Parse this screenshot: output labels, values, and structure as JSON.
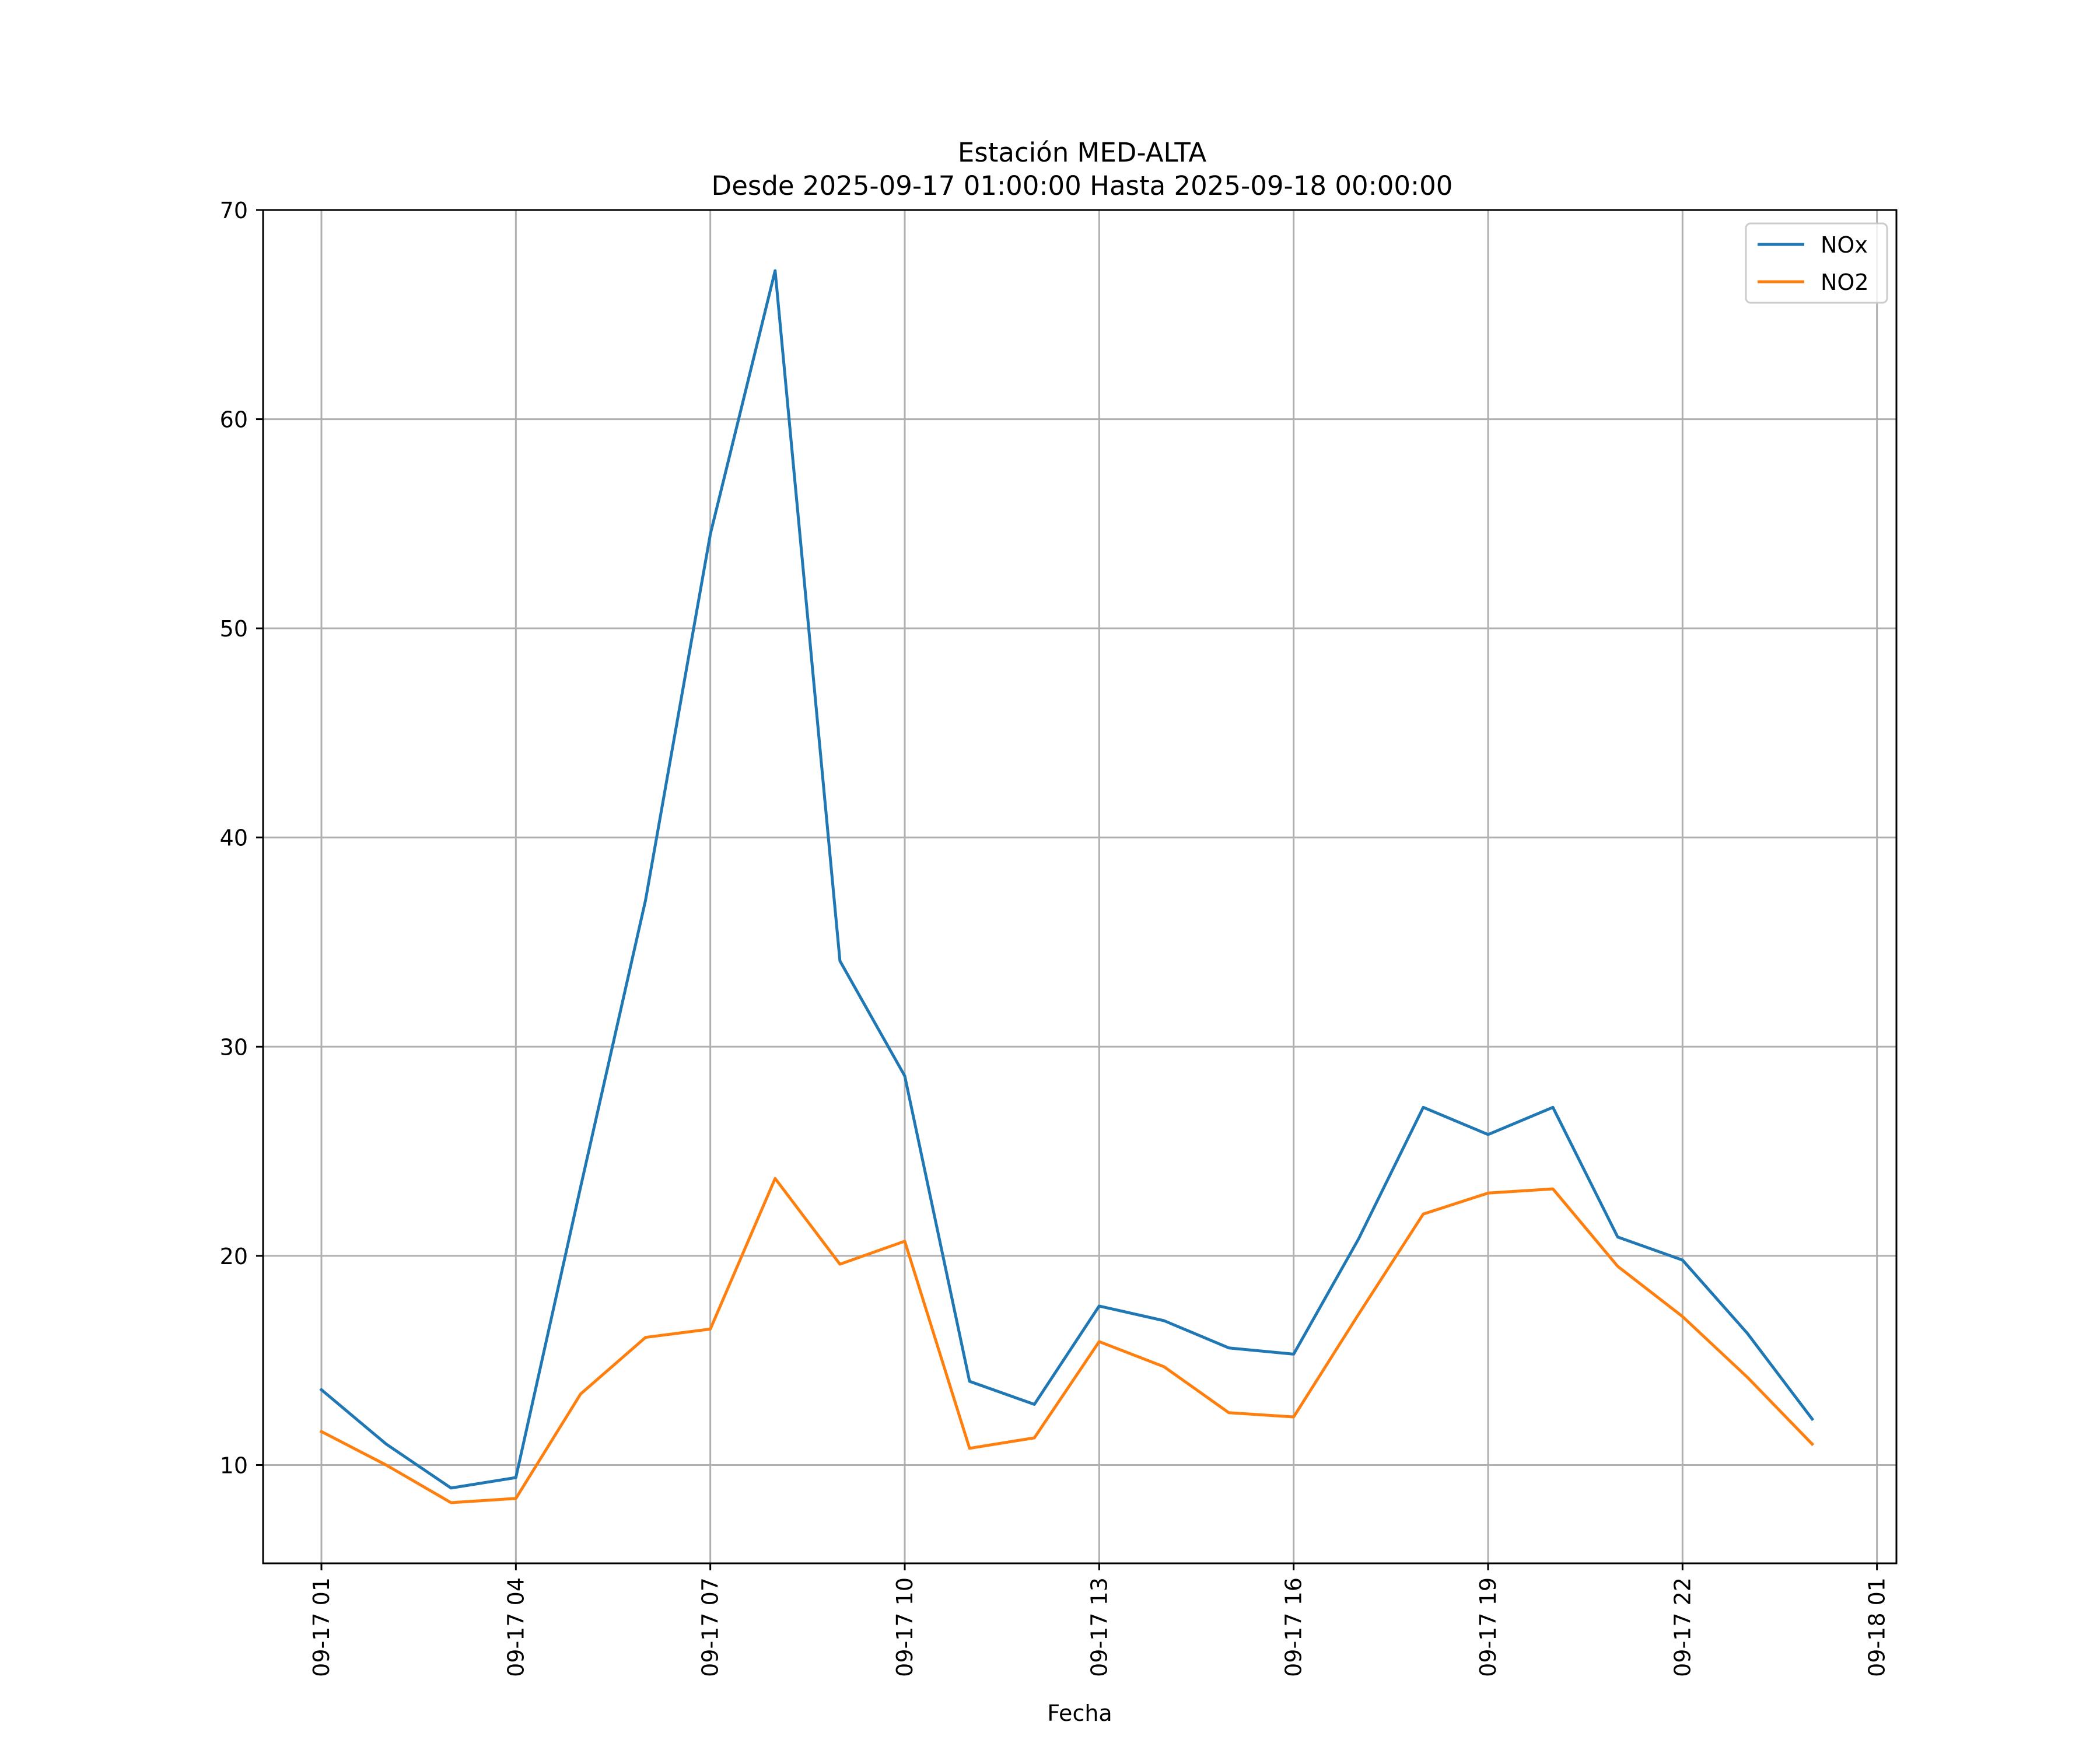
{
  "chart_data": {
    "type": "line",
    "title": "Estación MED-ALTA",
    "subtitle": "Desde 2025-09-17 01:00:00 Hasta 2025-09-18 00:00:00",
    "xlabel": "Fecha",
    "ylabel": "",
    "x_hours": [
      1,
      2,
      3,
      4,
      5,
      6,
      7,
      8,
      9,
      10,
      11,
      12,
      13,
      14,
      15,
      16,
      17,
      18,
      19,
      20,
      21,
      22,
      23,
      24
    ],
    "xlim": [
      0.1,
      25.3
    ],
    "ylim": [
      5.3,
      70
    ],
    "x_ticks": [
      {
        "hour": 1,
        "label": "09-17 01"
      },
      {
        "hour": 4,
        "label": "09-17 04"
      },
      {
        "hour": 7,
        "label": "09-17 07"
      },
      {
        "hour": 10,
        "label": "09-17 10"
      },
      {
        "hour": 13,
        "label": "09-17 13"
      },
      {
        "hour": 16,
        "label": "09-17 16"
      },
      {
        "hour": 19,
        "label": "09-17 19"
      },
      {
        "hour": 22,
        "label": "09-17 22"
      },
      {
        "hour": 25,
        "label": "09-18 01"
      }
    ],
    "y_ticks": [
      {
        "value": 10,
        "label": "10"
      },
      {
        "value": 20,
        "label": "20"
      },
      {
        "value": 30,
        "label": "30"
      },
      {
        "value": 40,
        "label": "40"
      },
      {
        "value": 50,
        "label": "50"
      },
      {
        "value": 60,
        "label": "60"
      },
      {
        "value": 70,
        "label": "70"
      }
    ],
    "grid": true,
    "legend_position": "top-right",
    "series": [
      {
        "name": "NOx",
        "color": "#1f77b4",
        "values": [
          13.6,
          11.0,
          8.9,
          9.4,
          23.3,
          37.0,
          54.5,
          67.1,
          34.1,
          28.6,
          14.0,
          12.9,
          17.6,
          16.9,
          15.6,
          15.3,
          20.8,
          27.1,
          25.8,
          27.1,
          20.9,
          19.8,
          16.3,
          12.2
        ]
      },
      {
        "name": "NO2",
        "color": "#ff7f0e",
        "values": [
          11.6,
          10.0,
          8.2,
          8.4,
          13.4,
          16.1,
          16.5,
          23.7,
          19.6,
          20.7,
          10.8,
          11.3,
          15.9,
          14.7,
          12.5,
          12.3,
          17.2,
          22.0,
          23.0,
          23.2,
          19.5,
          17.1,
          14.2,
          11.0
        ]
      }
    ]
  }
}
